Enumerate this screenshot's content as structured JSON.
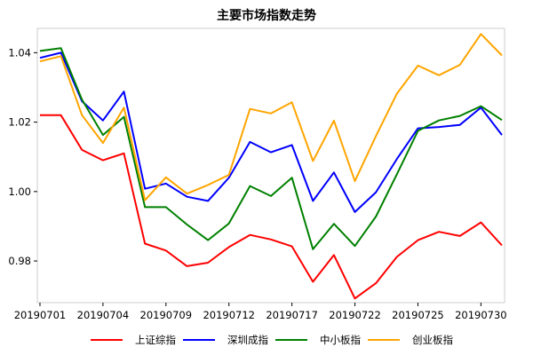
{
  "chart_data": {
    "type": "line",
    "title": "主要市场指数走势",
    "xlabel": "",
    "ylabel": "",
    "categories": [
      "20190701",
      "20190702",
      "20190703",
      "20190704",
      "20190705",
      "20190708",
      "20190709",
      "20190710",
      "20190711",
      "20190712",
      "20190715",
      "20190716",
      "20190717",
      "20190718",
      "20190719",
      "20190722",
      "20190723",
      "20190724",
      "20190725",
      "20190726",
      "20190729",
      "20190730",
      "20190731"
    ],
    "x_tick_labels": [
      "20190701",
      "20190704",
      "20190709",
      "20190712",
      "20190717",
      "20190722",
      "20190725",
      "20190730"
    ],
    "y_ticks": [
      "0.98",
      "1.00",
      "1.02",
      "1.04"
    ],
    "ylim": [
      0.968,
      1.047
    ],
    "grid": false,
    "legend_position": "bottom",
    "series": [
      {
        "name": "上证综指",
        "color": "#ff0000",
        "values": [
          1.022,
          1.022,
          1.012,
          1.009,
          1.011,
          0.985,
          0.983,
          0.9785,
          0.9795,
          0.984,
          0.9875,
          0.9862,
          0.9842,
          0.974,
          0.9817,
          0.9692,
          0.9736,
          0.9812,
          0.986,
          0.9884,
          0.9872,
          0.9911,
          0.9845
        ]
      },
      {
        "name": "深圳成指",
        "color": "#0000ff",
        "values": [
          1.0385,
          1.04,
          1.026,
          1.0205,
          1.0288,
          1.0008,
          1.0023,
          0.9985,
          0.9973,
          1.004,
          1.0143,
          1.0113,
          1.0134,
          0.9973,
          1.0055,
          0.9941,
          0.9998,
          1.0094,
          1.0182,
          1.0186,
          1.0192,
          1.0242,
          1.0163
        ]
      },
      {
        "name": "中小板指",
        "color": "#008000",
        "values": [
          1.0405,
          1.0413,
          1.0265,
          1.0163,
          1.0215,
          0.9955,
          0.9955,
          0.9905,
          0.986,
          0.9908,
          1.0016,
          0.9987,
          1.004,
          0.9834,
          0.9907,
          0.9843,
          0.9928,
          1.005,
          1.0175,
          1.0205,
          1.0218,
          1.0246,
          1.0206
        ]
      },
      {
        "name": "创业板指",
        "color": "#ffa500",
        "values": [
          1.0375,
          1.039,
          1.022,
          1.014,
          1.0242,
          0.9975,
          1.0041,
          0.9994,
          1.0019,
          1.0048,
          1.0238,
          1.0225,
          1.0257,
          1.0088,
          1.0204,
          1.003,
          1.016,
          1.0282,
          1.0363,
          1.0335,
          1.0365,
          1.0454,
          1.0392
        ]
      }
    ]
  }
}
